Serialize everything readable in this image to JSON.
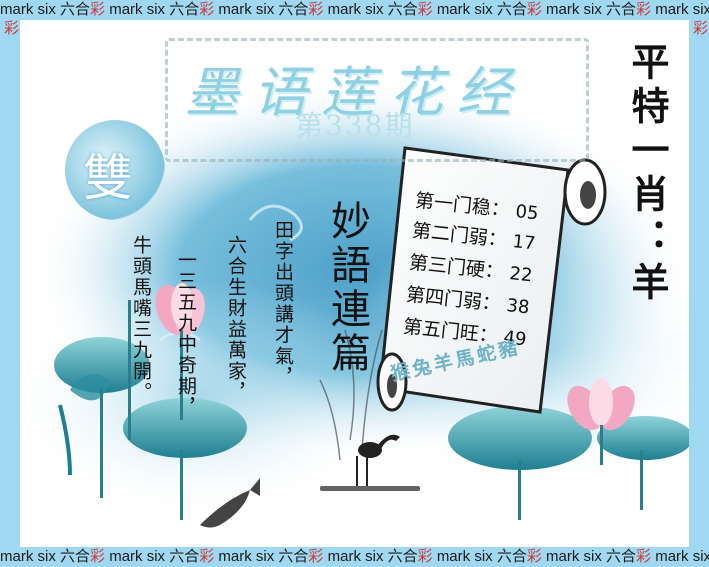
{
  "border": {
    "brand": "mark six",
    "accent": "六合",
    "mark": "彩",
    "color": "#9fd8f0",
    "accent_color": "#d23a3a"
  },
  "header": {
    "title": "墨语莲花经",
    "issue": "第338期"
  },
  "badge": {
    "label": "雙"
  },
  "special": {
    "label": "平特一肖：羊"
  },
  "poem": {
    "title": "妙語連篇",
    "lines": [
      "田字出頭講才氣，",
      "六合生財益萬家，",
      "一三五九中奇期，",
      "牛頭馬嘴三九開。"
    ]
  },
  "scroll": {
    "rows": [
      {
        "label": "第一门稳：",
        "value": "05"
      },
      {
        "label": "第二门弱：",
        "value": "17"
      },
      {
        "label": "第三门硬：",
        "value": "22"
      },
      {
        "label": "第四门弱：",
        "value": "38"
      },
      {
        "label": "第五门旺：",
        "value": "49"
      }
    ],
    "zodiac_line": "猴兔羊馬蛇豬"
  },
  "colors": {
    "ink_blue": "#3f9fc4",
    "lotus_pink": "#f2a7c2",
    "leaf_teal": "#2c8fa0"
  }
}
